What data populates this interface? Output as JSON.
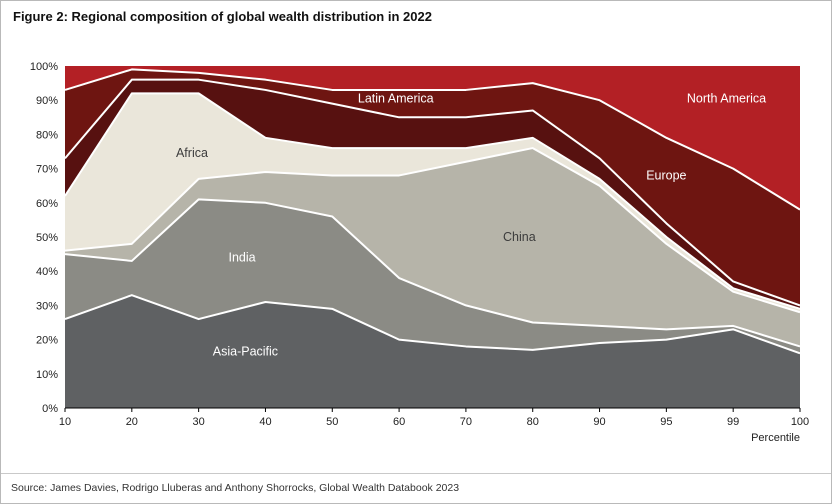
{
  "figure": {
    "title": "Figure 2: Regional composition of global wealth distribution in 2022",
    "source": "Source: James Davies, Rodrigo Lluberas and Anthony Shorrocks, Global Wealth Databook 2023"
  },
  "chart_data": {
    "type": "area",
    "stacked": true,
    "title": "Figure 2: Regional composition of global wealth distribution in 2022",
    "xlabel": "Percentile",
    "ylabel": "",
    "ylim": [
      0,
      100
    ],
    "grid": false,
    "legend": "in-chart-labels",
    "categories": [
      "10",
      "20",
      "30",
      "40",
      "50",
      "60",
      "70",
      "80",
      "90",
      "95",
      "99",
      "100"
    ],
    "y_tick_labels": [
      "0%",
      "10%",
      "20%",
      "30%",
      "40%",
      "50%",
      "60%",
      "70%",
      "80%",
      "90%",
      "100%"
    ],
    "boundary_line_color": "#ffffff",
    "series": [
      {
        "name": "Asia-Pacific",
        "color": "#5f6163",
        "label_color": "#ffffff",
        "values": [
          26,
          33,
          26,
          31,
          29,
          20,
          18,
          17,
          19,
          20,
          23,
          16
        ]
      },
      {
        "name": "India",
        "color": "#8b8b85",
        "label_color": "#ffffff",
        "values": [
          19,
          10,
          35,
          29,
          27,
          18,
          12,
          8,
          5,
          3,
          1,
          2
        ]
      },
      {
        "name": "China",
        "color": "#b6b4a9",
        "label_color": "#3c3c3c",
        "values": [
          1,
          5,
          6,
          9,
          12,
          30,
          42,
          51,
          41,
          25,
          10,
          10
        ]
      },
      {
        "name": "Africa",
        "color": "#eae6da",
        "label_color": "#3c3c3c",
        "values": [
          16,
          44,
          25,
          10,
          8,
          8,
          4,
          3,
          2,
          2,
          1,
          1
        ]
      },
      {
        "name": "Latin America",
        "color": "#571110",
        "label_color": "#ffffff",
        "values": [
          11,
          4,
          4,
          14,
          13,
          9,
          9,
          8,
          6,
          4,
          2,
          1
        ]
      },
      {
        "name": "Europe",
        "color": "#6e1511",
        "label_color": "#ffffff",
        "values": [
          20,
          3,
          2,
          3,
          4,
          8,
          8,
          8,
          17,
          25,
          33,
          28
        ]
      },
      {
        "name": "North America",
        "color": "#b32025",
        "label_color": "#ffffff",
        "values": [
          7,
          1,
          2,
          4,
          7,
          7,
          7,
          5,
          10,
          21,
          30,
          42
        ]
      }
    ]
  }
}
